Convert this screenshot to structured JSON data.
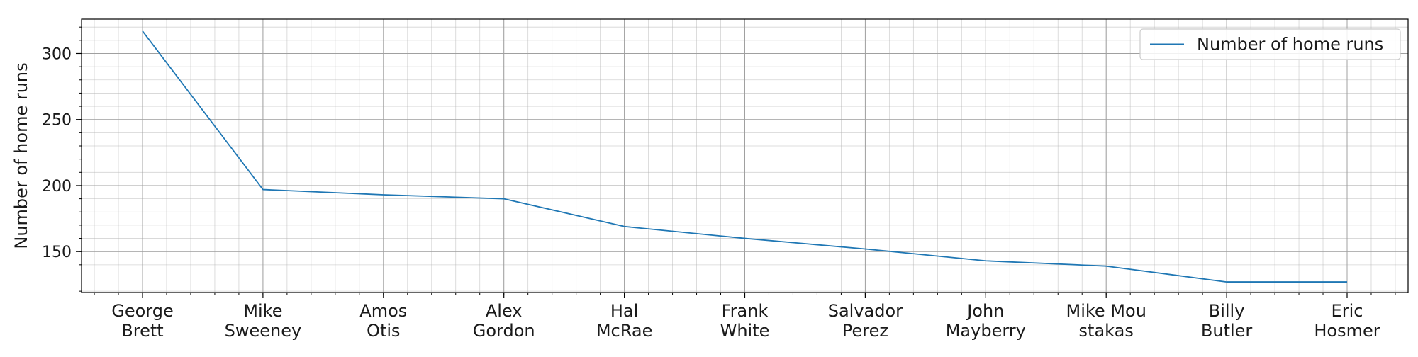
{
  "chart_data": {
    "type": "line",
    "title": "",
    "xlabel": "",
    "ylabel": "Number of home runs",
    "categories": [
      [
        "George",
        "Brett"
      ],
      [
        "Mike",
        "Sweeney"
      ],
      [
        "Amos",
        "Otis"
      ],
      [
        "Alex",
        "Gordon"
      ],
      [
        "Hal",
        "McRae"
      ],
      [
        "Frank",
        "White"
      ],
      [
        "Salvador",
        "Perez"
      ],
      [
        "John",
        "Mayberry"
      ],
      [
        "Mike Mou",
        "stakas"
      ],
      [
        "Billy",
        "Butler"
      ],
      [
        "Eric",
        "Hosmer"
      ]
    ],
    "series": [
      {
        "name": "Number of home runs",
        "color": "#1f77b4",
        "values": [
          317,
          197,
          193,
          190,
          169,
          160,
          152,
          143,
          139,
          127,
          127
        ]
      }
    ],
    "ylim": [
      119,
      326
    ],
    "yticks": [
      150,
      200,
      250,
      300
    ],
    "grid": true,
    "minor_grid": true,
    "legend": "top-right"
  }
}
